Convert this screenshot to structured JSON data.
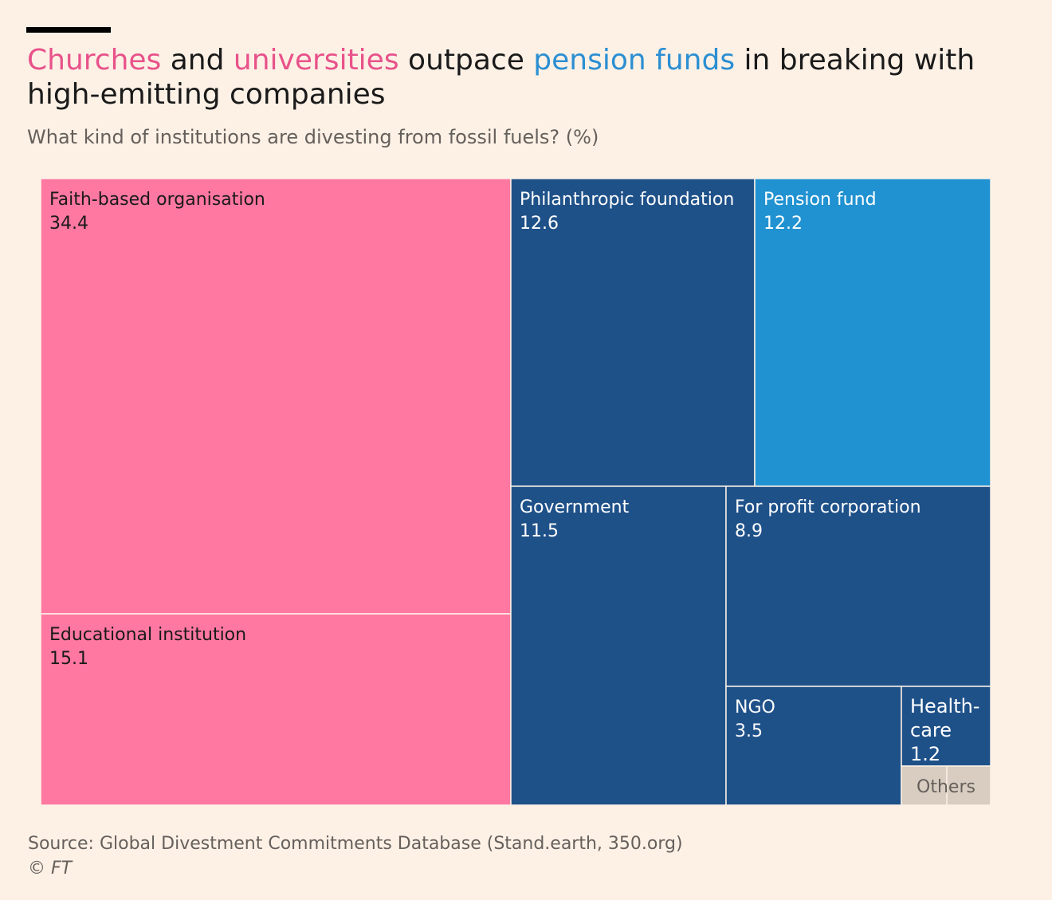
{
  "title": {
    "part1": "Churches",
    "part2": " and ",
    "part3": "universities",
    "part4": " outpace ",
    "part5": "pension funds",
    "part6": " in breaking with high-emitting companies"
  },
  "subtitle": "What kind of institutions are divesting from fossil fuels? (%)",
  "footer": {
    "source": "Source: Global Divestment Commitments Database (Stand.earth, 350.org)",
    "copyright": "© FT"
  },
  "colors": {
    "pink": "#ff78a2",
    "dark_blue": "#1f5189",
    "light_blue": "#2192d1",
    "others": "#d8cdc0",
    "background": "#fdf1e6"
  },
  "chart_data": {
    "type": "treemap",
    "title": "Churches and universities outpace pension funds in breaking with high-emitting companies",
    "subtitle": "What kind of institutions are divesting from fossil fuels? (%)",
    "unit": "%",
    "items": [
      {
        "label": "Faith-based organisation",
        "lines": [
          "Faith-based organisation"
        ],
        "value": 34.4,
        "display": "34.4",
        "color": "pink"
      },
      {
        "label": "Educational institution",
        "lines": [
          "Educational institution"
        ],
        "value": 15.1,
        "display": "15.1",
        "color": "pink"
      },
      {
        "label": "Philanthropic foundation",
        "lines": [
          "Philanthropic foundation"
        ],
        "value": 12.6,
        "display": "12.6",
        "color": "dark_blue"
      },
      {
        "label": "Pension fund",
        "lines": [
          "Pension fund"
        ],
        "value": 12.2,
        "display": "12.2",
        "color": "light_blue"
      },
      {
        "label": "Government",
        "lines": [
          "Government"
        ],
        "value": 11.5,
        "display": "11.5",
        "color": "dark_blue"
      },
      {
        "label": "For profit corporation",
        "lines": [
          "For profit corporation"
        ],
        "value": 8.9,
        "display": "8.9",
        "color": "dark_blue"
      },
      {
        "label": "NGO",
        "lines": [
          "NGO"
        ],
        "value": 3.5,
        "display": "3.5",
        "color": "dark_blue"
      },
      {
        "label": "Health-care",
        "lines": [
          "Health-",
          "care"
        ],
        "value": 1.2,
        "display": "1.2",
        "color": "dark_blue"
      },
      {
        "label": "Others",
        "lines": [
          "Others"
        ],
        "color": "others"
      }
    ]
  }
}
